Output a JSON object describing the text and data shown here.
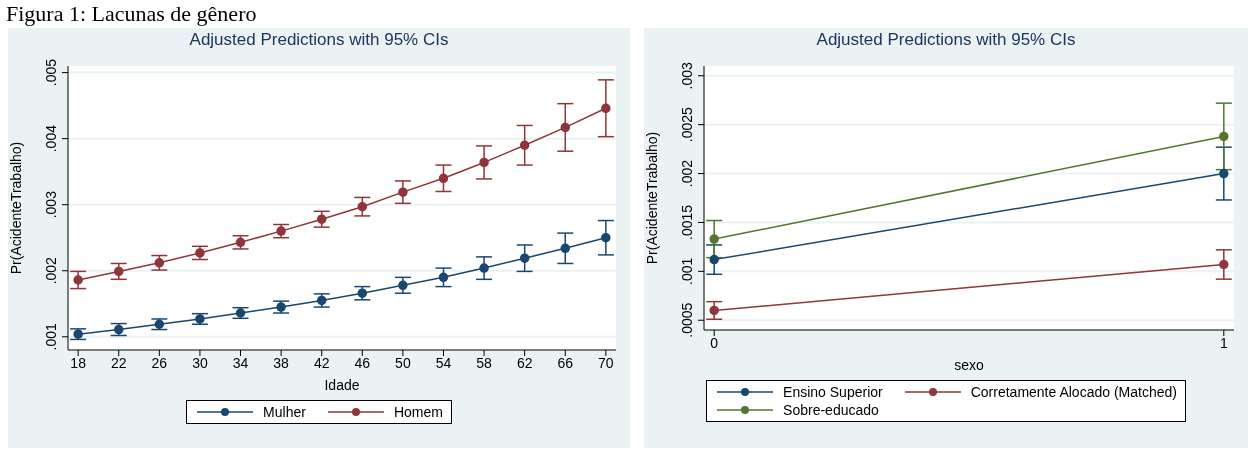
{
  "chart_data": [
    {
      "type": "line",
      "title": "Adjusted Predictions with 95% CIs",
      "xlabel": "Idade",
      "ylabel": "Pr(AcidenteTrabalho)",
      "annotations": [
        "Figura 1: Lacunas de gênero"
      ],
      "x": [
        18,
        22,
        26,
        30,
        34,
        38,
        42,
        46,
        50,
        54,
        58,
        62,
        66,
        70
      ],
      "series": [
        {
          "name": "Mulher",
          "color": "#1a476f",
          "values": [
            0.00104,
            0.00111,
            0.00119,
            0.00127,
            0.00136,
            0.00145,
            0.00155,
            0.00166,
            0.00178,
            0.0019,
            0.00204,
            0.00219,
            0.00234,
            0.0025
          ],
          "errors": [
            8e-05,
            9e-05,
            8e-05,
            8e-05,
            8e-05,
            9e-05,
            0.0001,
            0.0001,
            0.00012,
            0.00014,
            0.00017,
            0.0002,
            0.00023,
            0.00026
          ]
        },
        {
          "name": "Homem",
          "color": "#90353b",
          "values": [
            0.00186,
            0.00199,
            0.00212,
            0.00227,
            0.00243,
            0.0026,
            0.00278,
            0.00297,
            0.00319,
            0.0034,
            0.00364,
            0.0039,
            0.00417,
            0.00446
          ],
          "errors": [
            0.00013,
            0.00012,
            0.00011,
            0.0001,
            0.0001,
            0.0001,
            0.00012,
            0.00014,
            0.00017,
            0.0002,
            0.00025,
            0.0003,
            0.00036,
            0.00043
          ]
        }
      ],
      "xlim": [
        17,
        71
      ],
      "xticks": [
        18,
        22,
        26,
        30,
        34,
        38,
        42,
        46,
        50,
        54,
        58,
        62,
        66,
        70
      ],
      "ylim": [
        0.0008,
        0.0051
      ],
      "yticks": [
        {
          "value": 0.001,
          "label": ".001"
        },
        {
          "value": 0.002,
          "label": ".002"
        },
        {
          "value": 0.003,
          "label": ".003"
        },
        {
          "value": 0.004,
          "label": ".004"
        },
        {
          "value": 0.005,
          "label": ".005"
        }
      ],
      "grid": "y",
      "legend": "bottom",
      "marker": "circle",
      "line_style": "solid"
    },
    {
      "type": "line",
      "title": "Adjusted Predictions with 95% CIs",
      "xlabel": "sexo",
      "ylabel": "Pr(AcidenteTrabalho)",
      "x": [
        0,
        1
      ],
      "series": [
        {
          "name": "Ensino Superior",
          "color": "#1a476f",
          "values": [
            0.00112,
            0.002
          ],
          "errors": [
            0.00015,
            0.00027
          ]
        },
        {
          "name": "Corretamente Alocado (Matched)",
          "color": "#90353b",
          "values": [
            0.0006,
            0.00107
          ],
          "errors": [
            9e-05,
            0.00015
          ]
        },
        {
          "name": "Sobre-educado",
          "color": "#55752f",
          "values": [
            0.00133,
            0.00238
          ],
          "errors": [
            0.00019,
            0.00034
          ]
        }
      ],
      "xlim": [
        -0.02,
        1.02
      ],
      "xticks": [
        0,
        1
      ],
      "ylim": [
        0.0004,
        0.0031
      ],
      "yticks": [
        {
          "value": 0.0005,
          "label": ".0005"
        },
        {
          "value": 0.001,
          "label": ".001"
        },
        {
          "value": 0.0015,
          "label": ".0015"
        },
        {
          "value": 0.002,
          "label": ".002"
        },
        {
          "value": 0.0025,
          "label": ".0025"
        },
        {
          "value": 0.003,
          "label": ".003"
        }
      ],
      "grid": "y",
      "legend": "bottom",
      "marker": "circle",
      "line_style": "solid"
    }
  ]
}
